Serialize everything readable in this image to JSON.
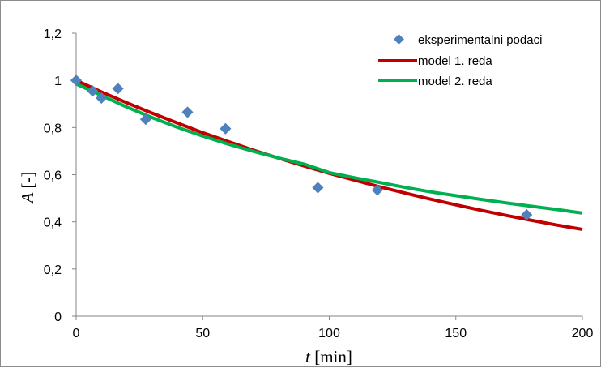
{
  "chart_data": {
    "type": "scatter",
    "xlabel_var": "t",
    "xlabel_unit": "[min]",
    "ylabel_var": "A",
    "ylabel_unit": "[-]",
    "xlim": [
      0,
      200
    ],
    "ylim": [
      0,
      1.2
    ],
    "x_ticks": [
      0,
      50,
      100,
      150,
      200
    ],
    "y_ticks": [
      0,
      0.2,
      0.4,
      0.6,
      0.8,
      1.0,
      1.2
    ],
    "y_tick_labels": [
      "0",
      "0,2",
      "0,4",
      "0,6",
      "0,8",
      "1",
      "1,2"
    ],
    "grid": false,
    "legend_position": "top-right",
    "series": [
      {
        "name": "eksperimentalni podaci",
        "kind": "scatter",
        "marker": "diamond",
        "color": "#4F81BD",
        "points": [
          [
            0,
            1.0
          ],
          [
            6.5,
            0.955
          ],
          [
            10,
            0.925
          ],
          [
            16.5,
            0.965
          ],
          [
            27.5,
            0.835
          ],
          [
            44,
            0.865
          ],
          [
            59,
            0.795
          ],
          [
            95.5,
            0.545
          ],
          [
            119,
            0.535
          ],
          [
            178,
            0.43
          ]
        ]
      },
      {
        "name": "model 1. reda",
        "kind": "line",
        "color": "#C00000",
        "points": [
          [
            0,
            1.0
          ],
          [
            10,
            0.951
          ],
          [
            20,
            0.905
          ],
          [
            30,
            0.861
          ],
          [
            40,
            0.819
          ],
          [
            50,
            0.778
          ],
          [
            60,
            0.741
          ],
          [
            70,
            0.704
          ],
          [
            80,
            0.67
          ],
          [
            90,
            0.637
          ],
          [
            100,
            0.606
          ],
          [
            110,
            0.577
          ],
          [
            120,
            0.548
          ],
          [
            130,
            0.522
          ],
          [
            140,
            0.496
          ],
          [
            150,
            0.472
          ],
          [
            160,
            0.449
          ],
          [
            170,
            0.427
          ],
          [
            180,
            0.406
          ],
          [
            190,
            0.386
          ],
          [
            200,
            0.368
          ]
        ]
      },
      {
        "name": "model 2. reda",
        "kind": "line",
        "color": "#00B050",
        "points": [
          [
            0,
            0.985
          ],
          [
            10,
            0.936
          ],
          [
            20,
            0.887
          ],
          [
            30,
            0.842
          ],
          [
            40,
            0.801
          ],
          [
            50,
            0.764
          ],
          [
            60,
            0.73
          ],
          [
            70,
            0.699
          ],
          [
            80,
            0.671
          ],
          [
            90,
            0.645
          ],
          [
            100,
            0.609
          ],
          [
            110,
            0.587
          ],
          [
            120,
            0.567
          ],
          [
            130,
            0.546
          ],
          [
            140,
            0.527
          ],
          [
            150,
            0.511
          ],
          [
            160,
            0.495
          ],
          [
            170,
            0.48
          ],
          [
            180,
            0.466
          ],
          [
            190,
            0.452
          ],
          [
            200,
            0.437
          ]
        ]
      }
    ]
  }
}
